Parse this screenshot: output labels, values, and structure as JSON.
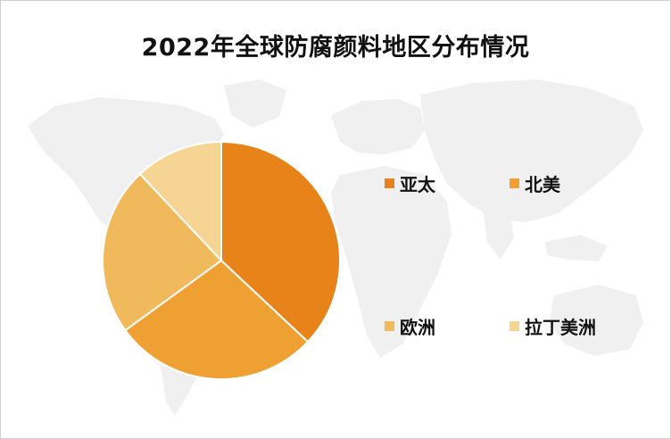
{
  "chart_data": {
    "type": "pie",
    "title": "2022年全球防腐颜料地区分布情况",
    "categories": [
      "亚太",
      "北美",
      "欧洲",
      "拉丁美洲"
    ],
    "values": [
      37,
      28,
      23,
      12
    ],
    "colors": [
      "#E8831A",
      "#EEA032",
      "#F0BA5C",
      "#F6D493"
    ],
    "legend_position": "right",
    "start_angle_deg": 0,
    "direction": "clockwise",
    "background_icon": "world-map"
  }
}
